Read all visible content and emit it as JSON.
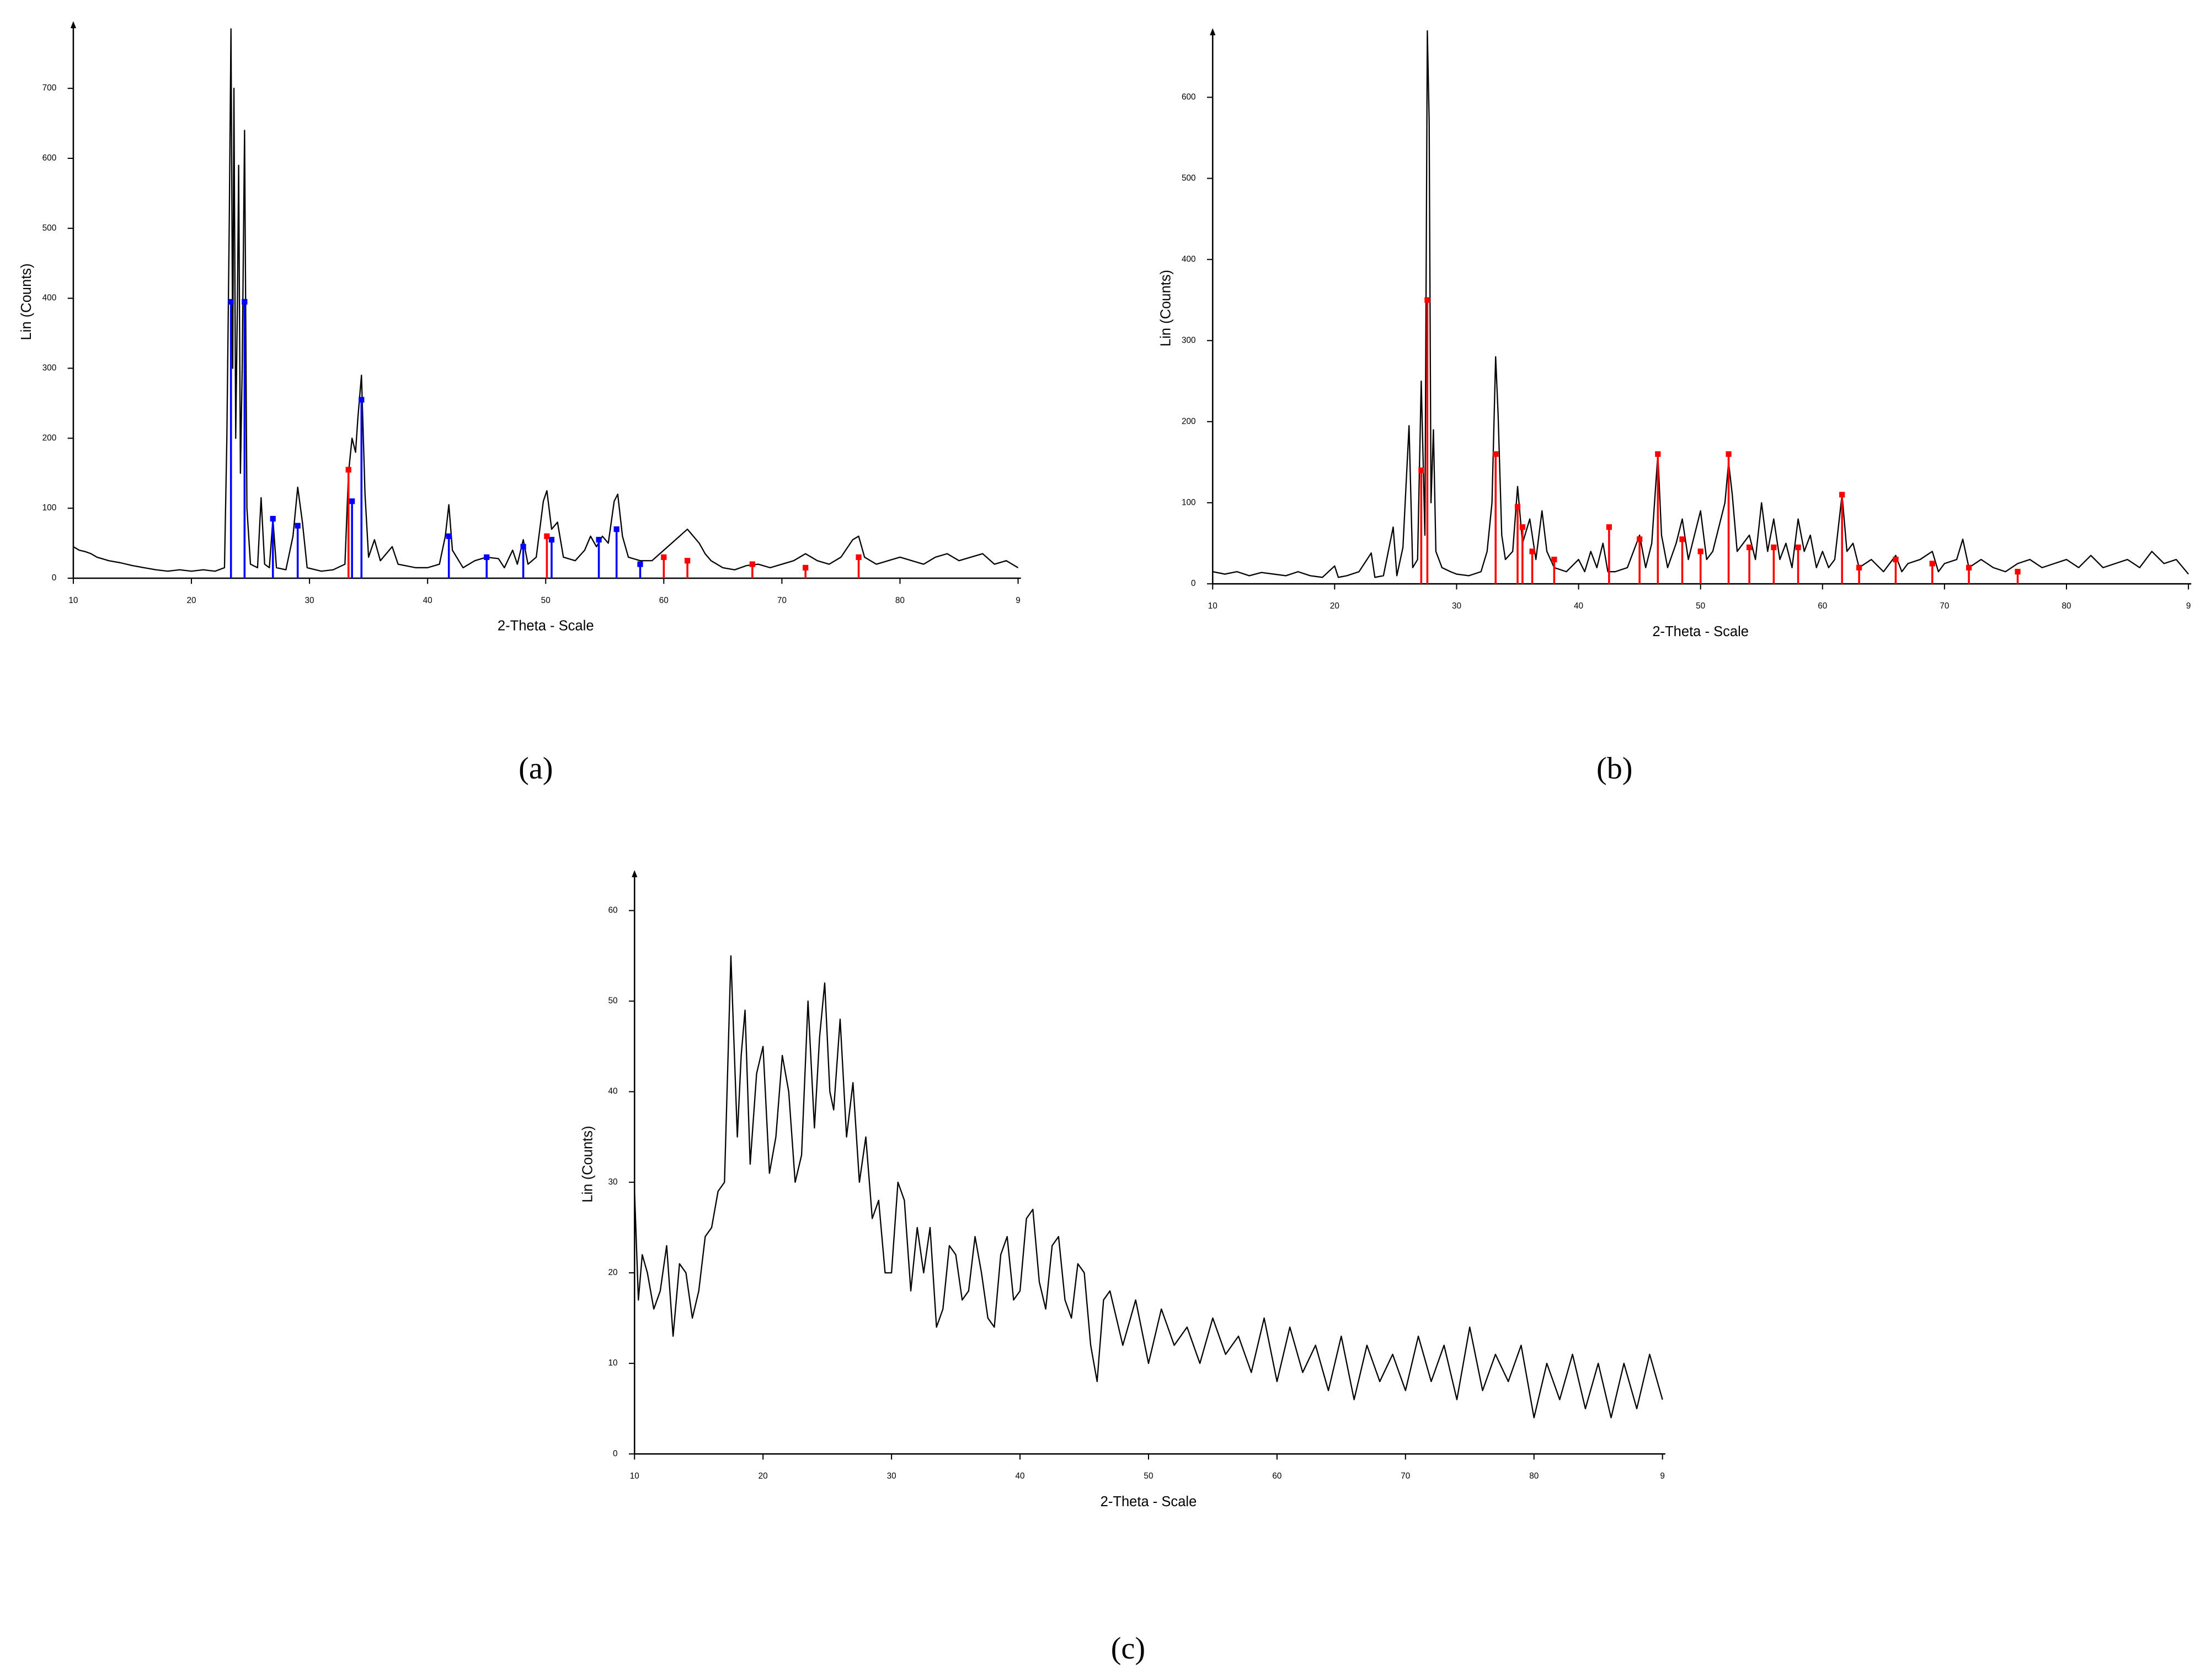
{
  "chart_data": [
    {
      "type": "line",
      "caption": "(a)",
      "x_label": "2-Theta - Scale",
      "y_label": "Lin (Counts)",
      "xlim": [
        10,
        90
      ],
      "xticks": [
        10,
        20,
        30,
        40,
        50,
        60,
        70,
        80,
        {
          "value": 90,
          "label": "9"
        }
      ],
      "ylim": [
        0,
        790
      ],
      "yticks": [
        0,
        100,
        200,
        300,
        400,
        500,
        600,
        700
      ],
      "series": [
        {
          "style": "line",
          "color": "#000000",
          "x": [
            10,
            10.5,
            11,
            11.5,
            12,
            13,
            14,
            15,
            16,
            17,
            18,
            19,
            20,
            21,
            22,
            22.8,
            23,
            23.2,
            23.35,
            23.5,
            23.6,
            23.75,
            23.9,
            24,
            24.15,
            24.3,
            24.5,
            24.7,
            25,
            25.6,
            25.9,
            26.2,
            26.6,
            26.9,
            27.2,
            28,
            28.6,
            29,
            29.4,
            29.8,
            31,
            32,
            33,
            33.3,
            33.6,
            33.9,
            34.1,
            34.4,
            34.7,
            35,
            35.5,
            36,
            37,
            37.5,
            39,
            40,
            41,
            41.5,
            41.8,
            42.1,
            43,
            44,
            45,
            46,
            46.5,
            47.2,
            47.6,
            48.1,
            48.5,
            49.2,
            49.8,
            50.1,
            50.5,
            51,
            51.5,
            52.5,
            53.3,
            53.8,
            54.3,
            54.8,
            55.3,
            55.8,
            56.1,
            56.5,
            57,
            58,
            59,
            60,
            61,
            62,
            62.5,
            63,
            63.5,
            64,
            65,
            66,
            67,
            68,
            69,
            70,
            71,
            72,
            73,
            74,
            75,
            76,
            76.5,
            77,
            78,
            79,
            80,
            81,
            82,
            83,
            84,
            85,
            86,
            87,
            88,
            89,
            90
          ],
          "values": [
            45,
            40,
            38,
            35,
            30,
            25,
            22,
            18,
            15,
            12,
            10,
            12,
            10,
            12,
            10,
            15,
            200,
            500,
            785,
            300,
            700,
            200,
            400,
            590,
            150,
            300,
            640,
            100,
            20,
            15,
            115,
            20,
            15,
            85,
            15,
            12,
            60,
            130,
            80,
            15,
            10,
            12,
            20,
            150,
            200,
            180,
            230,
            290,
            120,
            30,
            55,
            25,
            45,
            20,
            15,
            15,
            20,
            60,
            105,
            40,
            15,
            25,
            30,
            28,
            15,
            40,
            20,
            55,
            20,
            30,
            110,
            125,
            70,
            80,
            30,
            25,
            40,
            60,
            45,
            60,
            50,
            110,
            120,
            60,
            30,
            25,
            25,
            40,
            55,
            70,
            60,
            50,
            35,
            25,
            15,
            12,
            18,
            20,
            15,
            20,
            25,
            35,
            25,
            20,
            30,
            55,
            60,
            30,
            20,
            25,
            30,
            25,
            20,
            30,
            35,
            25,
            30,
            35,
            20,
            25,
            15
          ]
        },
        {
          "style": "sticks",
          "color": "#0000ff",
          "x": [
            23.35,
            24.5,
            26.9,
            29,
            33.6,
            34.4,
            41.8,
            45,
            48.1,
            50.5,
            54.5,
            56,
            58
          ],
          "values": [
            395,
            395,
            85,
            75,
            110,
            255,
            60,
            30,
            45,
            55,
            55,
            70,
            20
          ]
        },
        {
          "style": "sticks",
          "color": "#ff0000",
          "x": [
            33.3,
            50.1,
            60,
            62,
            67.5,
            72,
            76.5
          ],
          "values": [
            155,
            60,
            30,
            25,
            20,
            15,
            30
          ]
        }
      ]
    },
    {
      "type": "line",
      "caption": "(b)",
      "x_label": "2-Theta - Scale",
      "y_label": "Lin (Counts)",
      "xlim": [
        10,
        90
      ],
      "xticks": [
        10,
        20,
        30,
        40,
        50,
        60,
        70,
        80,
        {
          "value": 90,
          "label": "9"
        }
      ],
      "ylim": [
        0,
        680
      ],
      "yticks": [
        0,
        100,
        200,
        300,
        400,
        500,
        600
      ],
      "series": [
        {
          "style": "line",
          "color": "#000000",
          "x": [
            10,
            11,
            12,
            13,
            14,
            15,
            16,
            17,
            18,
            19,
            20,
            20.3,
            21,
            22,
            23,
            23.3,
            24,
            24.8,
            25.1,
            25.6,
            26.1,
            26.4,
            26.8,
            27.1,
            27.4,
            27.6,
            27.75,
            27.9,
            28.1,
            28.3,
            28.8,
            29.5,
            30,
            31,
            32,
            32.5,
            32.9,
            33.2,
            33.4,
            33.7,
            34,
            34.6,
            35,
            35.4,
            36,
            36.5,
            37,
            37.4,
            38,
            39,
            40,
            40.5,
            41,
            41.5,
            42,
            42.4,
            43,
            44,
            45,
            45.5,
            46,
            46.5,
            46.8,
            47.3,
            48,
            48.5,
            49,
            49.5,
            50,
            50.5,
            51,
            51.5,
            52,
            52.3,
            52.6,
            53,
            54,
            54.5,
            55,
            55.5,
            56,
            56.5,
            57,
            57.5,
            58,
            58.5,
            59,
            59.5,
            60,
            60.5,
            61,
            61.6,
            62,
            62.5,
            63,
            64,
            65,
            66,
            66.5,
            67,
            68,
            69,
            69.5,
            70,
            71,
            71.5,
            72,
            73,
            74,
            75,
            76,
            77,
            78,
            79,
            80,
            81,
            82,
            83,
            84,
            85,
            86,
            87,
            88,
            89,
            90
          ],
          "values": [
            15,
            12,
            15,
            10,
            14,
            12,
            10,
            15,
            10,
            8,
            22,
            8,
            10,
            15,
            38,
            8,
            10,
            70,
            10,
            45,
            195,
            20,
            30,
            250,
            60,
            682,
            570,
            100,
            190,
            40,
            20,
            15,
            12,
            10,
            15,
            40,
            100,
            280,
            210,
            60,
            30,
            40,
            120,
            50,
            80,
            30,
            90,
            40,
            20,
            15,
            30,
            15,
            40,
            20,
            50,
            15,
            15,
            20,
            60,
            20,
            50,
            160,
            60,
            20,
            50,
            80,
            30,
            60,
            90,
            30,
            40,
            70,
            100,
            150,
            110,
            40,
            60,
            30,
            100,
            40,
            80,
            30,
            50,
            20,
            80,
            40,
            60,
            20,
            40,
            20,
            30,
            110,
            40,
            50,
            20,
            30,
            15,
            35,
            15,
            25,
            30,
            40,
            15,
            25,
            30,
            55,
            20,
            30,
            20,
            15,
            25,
            30,
            20,
            25,
            30,
            20,
            35,
            20,
            25,
            30,
            20,
            40,
            25,
            30,
            12
          ]
        },
        {
          "style": "sticks",
          "color": "#ff0000",
          "x": [
            27.1,
            27.6,
            33.2,
            35,
            35.4,
            36.2,
            38,
            42.5,
            45,
            46.5,
            48.5,
            50,
            52.3,
            54,
            56,
            58,
            61.6,
            63,
            66,
            69,
            72,
            76
          ],
          "values": [
            140,
            350,
            160,
            95,
            70,
            40,
            30,
            70,
            55,
            160,
            55,
            40,
            160,
            45,
            45,
            45,
            110,
            20,
            30,
            25,
            20,
            15
          ]
        }
      ]
    },
    {
      "type": "line",
      "caption": "(c)",
      "x_label": "2-Theta - Scale",
      "y_label": "Lin (Counts)",
      "xlim": [
        10,
        90
      ],
      "xticks": [
        10,
        20,
        30,
        40,
        50,
        60,
        70,
        80,
        {
          "value": 90,
          "label": "9"
        }
      ],
      "ylim": [
        0,
        64
      ],
      "yticks": [
        0,
        10,
        20,
        30,
        40,
        50,
        60
      ],
      "series": [
        {
          "style": "line",
          "color": "#000000",
          "x": [
            10,
            10.3,
            10.6,
            11,
            11.5,
            12,
            12.5,
            13,
            13.5,
            14,
            14.5,
            15,
            15.5,
            16,
            16.5,
            17,
            17.5,
            18,
            18.3,
            18.6,
            19,
            19.5,
            20,
            20.5,
            21,
            21.5,
            22,
            22.5,
            23,
            23.5,
            24,
            24.4,
            24.8,
            25.2,
            25.5,
            26,
            26.5,
            27,
            27.5,
            28,
            28.5,
            29,
            29.5,
            30,
            30.5,
            31,
            31.5,
            32,
            32.5,
            33,
            33.5,
            34,
            34.5,
            35,
            35.5,
            36,
            36.5,
            37,
            37.5,
            38,
            38.5,
            39,
            39.5,
            40,
            40.5,
            41,
            41.5,
            42,
            42.5,
            43,
            43.5,
            44,
            44.5,
            45,
            45.5,
            46,
            46.5,
            47,
            48,
            49,
            50,
            51,
            52,
            53,
            54,
            55,
            56,
            57,
            58,
            59,
            60,
            61,
            62,
            63,
            64,
            65,
            66,
            67,
            68,
            69,
            70,
            71,
            72,
            73,
            74,
            75,
            76,
            77,
            78,
            79,
            80,
            81,
            82,
            83,
            84,
            85,
            86,
            87,
            88,
            89,
            90
          ],
          "values": [
            29,
            17,
            22,
            20,
            16,
            18,
            23,
            13,
            21,
            20,
            15,
            18,
            24,
            25,
            29,
            30,
            55,
            35,
            44,
            49,
            32,
            42,
            45,
            31,
            35,
            44,
            40,
            30,
            33,
            50,
            36,
            46,
            52,
            40,
            38,
            48,
            35,
            41,
            30,
            35,
            26,
            28,
            20,
            20,
            30,
            28,
            18,
            25,
            20,
            25,
            14,
            16,
            23,
            22,
            17,
            18,
            24,
            20,
            15,
            14,
            22,
            24,
            17,
            18,
            26,
            27,
            19,
            16,
            23,
            24,
            17,
            15,
            21,
            20,
            12,
            8,
            17,
            18,
            12,
            17,
            10,
            16,
            12,
            14,
            10,
            15,
            11,
            13,
            9,
            15,
            8,
            14,
            9,
            12,
            7,
            13,
            6,
            12,
            8,
            11,
            7,
            13,
            8,
            12,
            6,
            14,
            7,
            11,
            8,
            12,
            4,
            10,
            6,
            11,
            5,
            10,
            4,
            10,
            5,
            11,
            6
          ]
        }
      ]
    }
  ]
}
